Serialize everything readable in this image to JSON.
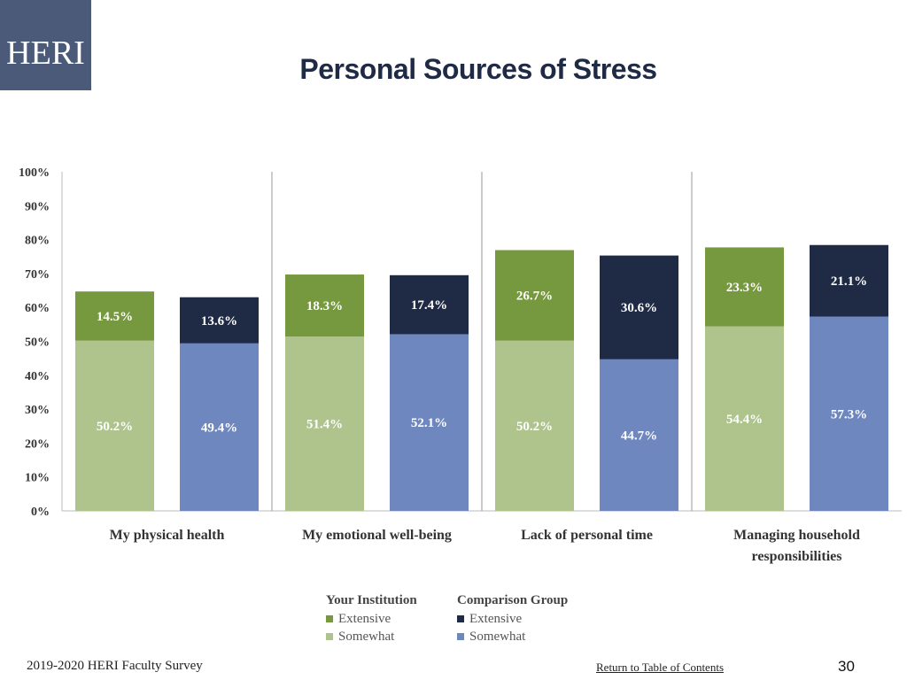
{
  "logo": {
    "text": "HERI"
  },
  "title": "Personal Sources of Stress",
  "chart_data": {
    "type": "bar",
    "stacked": true,
    "ylim": [
      0,
      100
    ],
    "yticks": [
      "0%",
      "10%",
      "20%",
      "30%",
      "40%",
      "50%",
      "60%",
      "70%",
      "80%",
      "90%",
      "100%"
    ],
    "categories": [
      [
        "My physical health"
      ],
      [
        "My emotional well-being"
      ],
      [
        "Lack of personal time"
      ],
      [
        "Managing household",
        "responsibilities"
      ]
    ],
    "groups": [
      {
        "heading": "Your Institution",
        "series": [
          {
            "name": "Extensive",
            "color": "#76983f",
            "values": [
              14.5,
              18.3,
              26.7,
              23.3
            ],
            "labels": [
              "14.5%",
              "18.3%",
              "26.7%",
              "23.3%"
            ]
          },
          {
            "name": "Somewhat",
            "color": "#aec48c",
            "values": [
              50.2,
              51.4,
              50.2,
              54.4
            ],
            "labels": [
              "50.2%",
              "51.4%",
              "50.2%",
              "54.4%"
            ]
          }
        ]
      },
      {
        "heading": "Comparison Group",
        "series": [
          {
            "name": "Extensive",
            "color": "#1f2a44",
            "values": [
              13.6,
              17.4,
              30.6,
              21.1
            ],
            "labels": [
              "13.6%",
              "17.4%",
              "30.6%",
              "21.1%"
            ]
          },
          {
            "name": "Somewhat",
            "color": "#6f87bf",
            "values": [
              49.4,
              52.1,
              44.7,
              57.3
            ],
            "labels": [
              "49.4%",
              "52.1%",
              "44.7%",
              "57.3%"
            ]
          }
        ]
      }
    ],
    "grid": false,
    "legend_position": "bottom"
  },
  "legend": {
    "institution": {
      "heading": "Your Institution",
      "extensive": "Extensive",
      "somewhat": "Somewhat"
    },
    "comparison": {
      "heading": "Comparison Group",
      "extensive": "Extensive",
      "somewhat": "Somewhat"
    }
  },
  "colors": {
    "inst_extensive": "#76983f",
    "inst_somewhat": "#aec48c",
    "comp_extensive": "#1f2a44",
    "comp_somewhat": "#6f87bf"
  },
  "footer": {
    "survey": "2019-2020 HERI Faculty Survey",
    "toc_link": "Return to Table of Contents",
    "page": "30"
  }
}
